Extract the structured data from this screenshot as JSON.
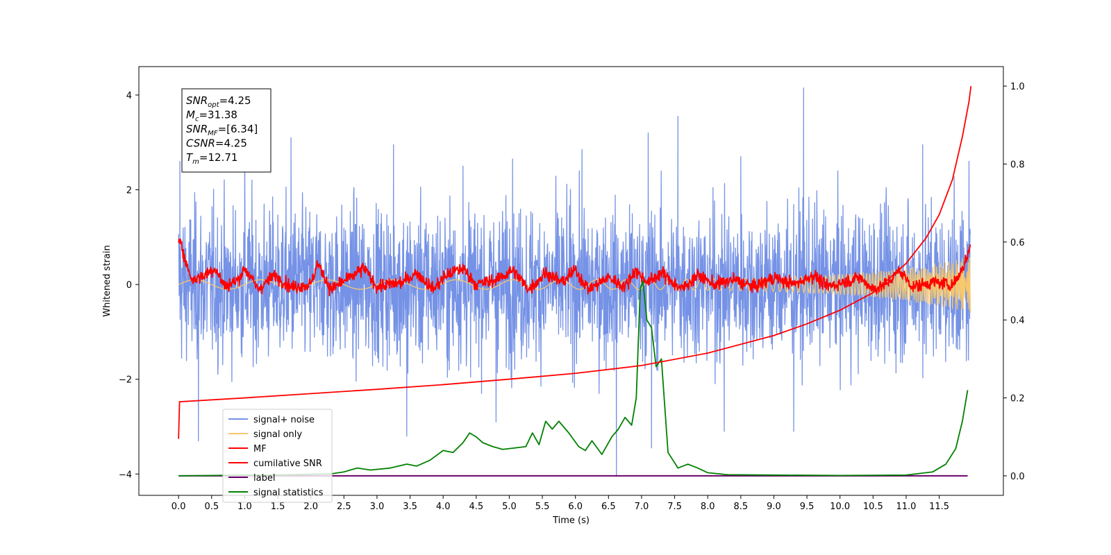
{
  "chart_data": {
    "type": "line",
    "xlabel": "Time (s)",
    "ylabel": "Whitened strain",
    "xlim": [
      -0.6,
      12.47
    ],
    "ylim": [
      -4.45,
      4.6
    ],
    "y2lim": [
      -0.05,
      1.05
    ],
    "x_ticks": [
      "0.0",
      "0.5",
      "1.0",
      "1.5",
      "2.0",
      "2.5",
      "3.0",
      "3.5",
      "4.0",
      "4.5",
      "5.0",
      "5.5",
      "6.0",
      "6.5",
      "7.0",
      "7.5",
      "8.0",
      "8.5",
      "9.0",
      "9.5",
      "10.0",
      "10.5",
      "11.0",
      "11.5"
    ],
    "y_ticks": [
      "4",
      "2",
      "0",
      "−2",
      "−4"
    ],
    "y2_ticks": [
      "1.0",
      "0.8",
      "0.6",
      "0.4",
      "0.2",
      "0.0"
    ],
    "legend_position": "lower-left",
    "grid": false,
    "stats_box": {
      "snr_opt": {
        "main": "SNR",
        "sub": "opt",
        "value": "=4.25"
      },
      "mc": {
        "main": "M",
        "sub": "c",
        "value": "=31.38"
      },
      "snr_mf": {
        "main": "SNR",
        "sub": "MF",
        "value": "=[6.34]"
      },
      "csnr": {
        "main": "CSNR",
        "sub": "",
        "value": "=4.25"
      },
      "tm": {
        "main": "T",
        "sub": "m",
        "value": "=12.71"
      }
    },
    "series": [
      {
        "name": "signal+ noise",
        "axis": "left",
        "color": "#7592e6",
        "description": "dense noisy strain, mostly between -2.3 and 2.4, spikes to 4.15 and -4.05",
        "envelope": {
          "typical_min": -2.3,
          "typical_max": 2.4,
          "peak_max": 4.15,
          "peak_min": -4.05
        },
        "spikes": [
          [
            0.02,
            2.6
          ],
          [
            1.0,
            2.9
          ],
          [
            1.7,
            3.1
          ],
          [
            3.25,
            2.95
          ],
          [
            4.3,
            2.5
          ],
          [
            5.05,
            2.65
          ],
          [
            6.1,
            2.85
          ],
          [
            6.62,
            -4.05
          ],
          [
            7.1,
            3.2
          ],
          [
            7.55,
            3.55
          ],
          [
            8.5,
            2.7
          ],
          [
            9.45,
            4.15
          ],
          [
            11.25,
            2.95
          ],
          [
            11.95,
            2.6
          ],
          [
            3.45,
            -3.2
          ],
          [
            9.3,
            -3.1
          ],
          [
            4.8,
            -2.9
          ],
          [
            8.25,
            -3.1
          ],
          [
            7.15,
            -3.45
          ],
          [
            0.3,
            -3.3
          ]
        ]
      },
      {
        "name": "signal only",
        "axis": "left",
        "color": "#f7c86c",
        "description": "small waveform near zero, amplitude ~0.1, growing to ~0.6 at the end",
        "amplitude_start": 0.1,
        "amplitude_end": 0.6
      },
      {
        "name": "MF",
        "axis": "left",
        "color": "#ff0000",
        "description": "matched-filter output hovering 0 +/- 0.3",
        "points": [
          [
            0.0,
            0.8
          ],
          [
            0.03,
            1.0
          ],
          [
            0.1,
            0.5
          ],
          [
            0.2,
            0.1
          ],
          [
            0.4,
            0.2
          ],
          [
            0.55,
            0.35
          ],
          [
            0.7,
            -0.05
          ],
          [
            0.9,
            0.1
          ],
          [
            1.0,
            0.35
          ],
          [
            1.2,
            -0.1
          ],
          [
            1.45,
            0.2
          ],
          [
            1.7,
            -0.05
          ],
          [
            2.0,
            0.0
          ],
          [
            2.1,
            0.45
          ],
          [
            2.3,
            -0.1
          ],
          [
            2.6,
            0.15
          ],
          [
            2.8,
            0.35
          ],
          [
            3.0,
            -0.05
          ],
          [
            3.4,
            0.05
          ],
          [
            3.6,
            0.25
          ],
          [
            3.85,
            -0.1
          ],
          [
            4.05,
            0.2
          ],
          [
            4.3,
            0.35
          ],
          [
            4.5,
            0.0
          ],
          [
            4.8,
            0.1
          ],
          [
            5.05,
            0.3
          ],
          [
            5.3,
            -0.1
          ],
          [
            5.55,
            0.25
          ],
          [
            5.8,
            0.05
          ],
          [
            6.0,
            0.3
          ],
          [
            6.2,
            -0.1
          ],
          [
            6.5,
            0.15
          ],
          [
            6.75,
            -0.05
          ],
          [
            6.9,
            0.3
          ],
          [
            7.1,
            0.05
          ],
          [
            7.3,
            0.25
          ],
          [
            7.6,
            -0.1
          ],
          [
            7.85,
            0.2
          ],
          [
            8.1,
            0.0
          ],
          [
            8.4,
            0.1
          ],
          [
            8.7,
            -0.05
          ],
          [
            9.0,
            0.15
          ],
          [
            9.3,
            0.0
          ],
          [
            9.6,
            0.2
          ],
          [
            9.8,
            -0.05
          ],
          [
            10.05,
            0.05
          ],
          [
            10.3,
            0.15
          ],
          [
            10.5,
            -0.1
          ],
          [
            10.7,
            0.0
          ],
          [
            10.9,
            0.3
          ],
          [
            11.1,
            -0.05
          ],
          [
            11.4,
            0.05
          ],
          [
            11.7,
            0.0
          ],
          [
            11.8,
            0.2
          ],
          [
            11.9,
            0.5
          ],
          [
            11.97,
            0.8
          ]
        ]
      },
      {
        "name": "cumilative SNR",
        "axis": "right",
        "color": "#ff0000",
        "description": "monotonic curve rising from 0.19 to 1.0",
        "points": [
          [
            0.0,
            0.095
          ],
          [
            0.015,
            0.19
          ],
          [
            1.0,
            0.2
          ],
          [
            2.0,
            0.211
          ],
          [
            3.0,
            0.222
          ],
          [
            4.0,
            0.234
          ],
          [
            5.0,
            0.248
          ],
          [
            6.0,
            0.263
          ],
          [
            7.0,
            0.283
          ],
          [
            8.0,
            0.315
          ],
          [
            9.0,
            0.36
          ],
          [
            9.5,
            0.39
          ],
          [
            10.0,
            0.425
          ],
          [
            10.5,
            0.47
          ],
          [
            11.0,
            0.545
          ],
          [
            11.3,
            0.61
          ],
          [
            11.5,
            0.67
          ],
          [
            11.7,
            0.76
          ],
          [
            11.85,
            0.87
          ],
          [
            11.95,
            0.96
          ],
          [
            11.98,
            1.0
          ]
        ]
      },
      {
        "name": "label",
        "axis": "right",
        "color": "#6a006a",
        "description": "flat line at 0",
        "points": [
          [
            0.0,
            0.0
          ],
          [
            11.93,
            0.0
          ]
        ]
      },
      {
        "name": "signal statistics",
        "axis": "right",
        "color": "#008000",
        "points": [
          [
            0.0,
            0.0
          ],
          [
            0.5,
            0.001
          ],
          [
            1.0,
            0.002
          ],
          [
            1.5,
            0.002
          ],
          [
            2.0,
            0.004
          ],
          [
            2.3,
            0.005
          ],
          [
            2.5,
            0.01
          ],
          [
            2.7,
            0.02
          ],
          [
            2.9,
            0.015
          ],
          [
            3.2,
            0.02
          ],
          [
            3.45,
            0.03
          ],
          [
            3.6,
            0.025
          ],
          [
            3.8,
            0.04
          ],
          [
            4.0,
            0.065
          ],
          [
            4.15,
            0.06
          ],
          [
            4.3,
            0.085
          ],
          [
            4.4,
            0.11
          ],
          [
            4.5,
            0.1
          ],
          [
            4.6,
            0.085
          ],
          [
            4.75,
            0.075
          ],
          [
            4.9,
            0.068
          ],
          [
            5.1,
            0.072
          ],
          [
            5.25,
            0.075
          ],
          [
            5.35,
            0.11
          ],
          [
            5.45,
            0.08
          ],
          [
            5.55,
            0.14
          ],
          [
            5.65,
            0.12
          ],
          [
            5.75,
            0.14
          ],
          [
            5.9,
            0.11
          ],
          [
            6.05,
            0.075
          ],
          [
            6.15,
            0.065
          ],
          [
            6.25,
            0.09
          ],
          [
            6.4,
            0.055
          ],
          [
            6.55,
            0.1
          ],
          [
            6.65,
            0.12
          ],
          [
            6.75,
            0.15
          ],
          [
            6.85,
            0.13
          ],
          [
            6.92,
            0.2
          ],
          [
            6.98,
            0.48
          ],
          [
            7.02,
            0.5
          ],
          [
            7.08,
            0.4
          ],
          [
            7.15,
            0.38
          ],
          [
            7.22,
            0.28
          ],
          [
            7.3,
            0.3
          ],
          [
            7.4,
            0.06
          ],
          [
            7.55,
            0.02
          ],
          [
            7.7,
            0.03
          ],
          [
            7.85,
            0.02
          ],
          [
            8.0,
            0.008
          ],
          [
            8.3,
            0.003
          ],
          [
            9.0,
            0.002
          ],
          [
            10.0,
            0.001
          ],
          [
            11.0,
            0.002
          ],
          [
            11.4,
            0.01
          ],
          [
            11.6,
            0.03
          ],
          [
            11.75,
            0.07
          ],
          [
            11.85,
            0.14
          ],
          [
            11.93,
            0.22
          ]
        ]
      }
    ]
  }
}
